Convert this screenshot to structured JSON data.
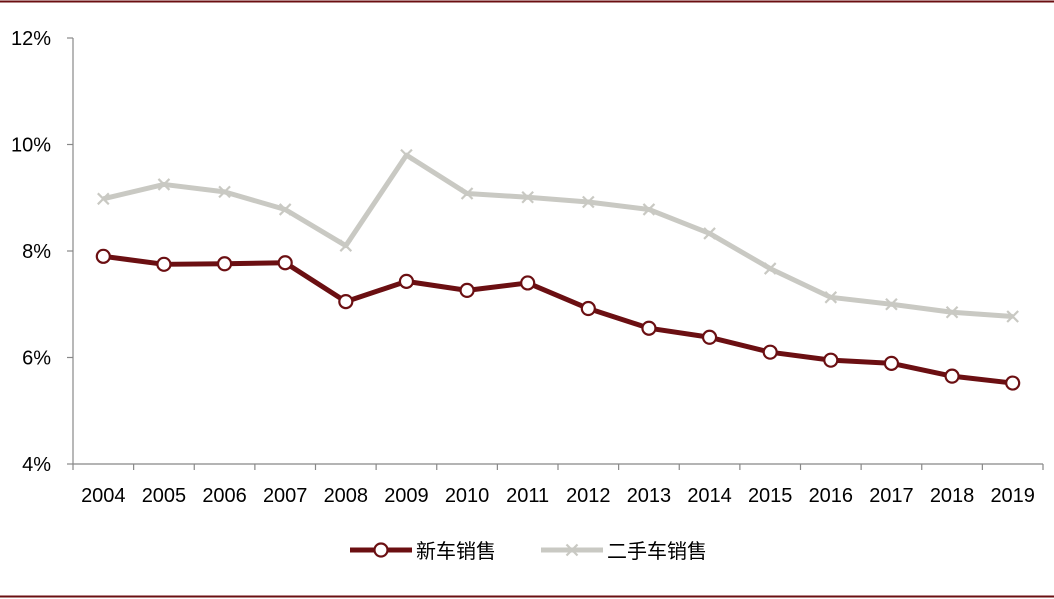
{
  "chart_data": {
    "type": "line",
    "title": "",
    "xlabel": "",
    "ylabel": "",
    "categories": [
      "2004",
      "2005",
      "2006",
      "2007",
      "2008",
      "2009",
      "2010",
      "2011",
      "2012",
      "2013",
      "2014",
      "2015",
      "2016",
      "2017",
      "2018",
      "2019"
    ],
    "ylim": [
      4,
      12
    ],
    "yticks": [
      "4%",
      "6%",
      "8%",
      "10%",
      "12%"
    ],
    "grid": false,
    "legend_position": "bottom",
    "series": [
      {
        "name": "新车销售",
        "color": "#6b0f12",
        "marker": "circle",
        "values": [
          7.9,
          7.75,
          7.76,
          7.78,
          7.05,
          7.43,
          7.26,
          7.4,
          6.92,
          6.55,
          6.38,
          6.1,
          5.95,
          5.89,
          5.65,
          5.52
        ]
      },
      {
        "name": "二手车销售",
        "color": "#c9c9c3",
        "marker": "x",
        "values": [
          8.98,
          9.25,
          9.11,
          8.78,
          8.1,
          9.8,
          9.08,
          9.01,
          8.92,
          8.78,
          8.33,
          7.67,
          7.13,
          7.0,
          6.85,
          6.77
        ]
      }
    ]
  }
}
